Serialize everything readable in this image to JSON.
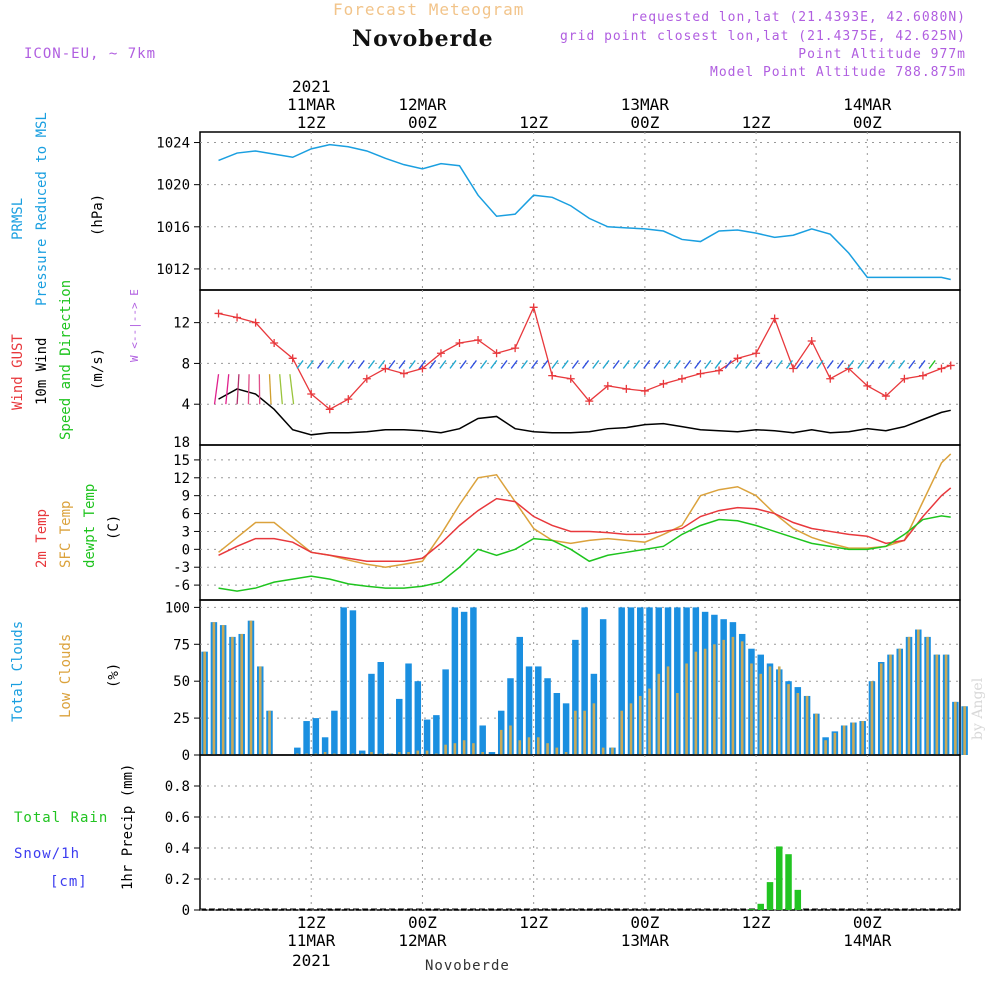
{
  "header": {
    "title": "Forecast Meteogram",
    "location": "Novoberde",
    "model": "ICON-EU, ~ 7km",
    "requested": "requested lon,lat (21.4393E, 42.6080N)",
    "gridpoint": "grid point closest lon,lat (21.4375E, 42.625N)",
    "altitude": "Point Altitude 977m",
    "model_altitude": "Model Point Altitude 788.875m",
    "credit": "by Angel",
    "footer": "Novoberde",
    "year": "2021"
  },
  "time_axis": {
    "top_labels": [
      {
        "t": 12,
        "line1": "11MAR",
        "line2": "12Z"
      },
      {
        "t": 24,
        "line1": "12MAR",
        "line2": "00Z"
      },
      {
        "t": 36,
        "line1": "",
        "line2": "12Z"
      },
      {
        "t": 48,
        "line1": "13MAR",
        "line2": "00Z"
      },
      {
        "t": 60,
        "line1": "",
        "line2": "12Z"
      },
      {
        "t": 72,
        "line1": "14MAR",
        "line2": "00Z"
      }
    ],
    "bottom_labels": [
      {
        "t": 12,
        "line1": "12Z",
        "line2": "11MAR"
      },
      {
        "t": 24,
        "line1": "00Z",
        "line2": "12MAR"
      },
      {
        "t": 36,
        "line1": "12Z",
        "line2": ""
      },
      {
        "t": 48,
        "line1": "00Z",
        "line2": "13MAR"
      },
      {
        "t": 60,
        "line1": "12Z",
        "line2": ""
      },
      {
        "t": 72,
        "line1": "00Z",
        "line2": "14MAR"
      }
    ]
  },
  "panel_labels": {
    "pressure": {
      "a": "PRMSL",
      "b": "Pressure Reduced to MSL",
      "unit": "(hPa)"
    },
    "wind": {
      "a": "Wind GUST",
      "b": "10m Wind",
      "c": "Speed and Direction",
      "unit": "(m/s)",
      "compass": "W <--|--> E"
    },
    "temp": {
      "a": "2m Temp",
      "b": "SFC Temp",
      "c": "dewpt Temp",
      "unit": "(C)"
    },
    "clouds": {
      "a": "Total Clouds",
      "b": "Low Clouds",
      "unit": "(%)"
    },
    "precip": {
      "a": "1hr Precip (mm)",
      "rain": "Total  Rain",
      "snow": "Snow/1h",
      "snow_unit": "[cm]"
    }
  },
  "colors": {
    "pressure": "#1a9fe0",
    "gust": "#e8383c",
    "wind": "#000000",
    "temp2m": "#e8383c",
    "sfc": "#dba23c",
    "dewpt": "#1ec41e",
    "total_clouds": "#1a8fe0",
    "low_clouds": "#c8aa5a",
    "rain": "#22c422",
    "title": "#f2c48a",
    "meta": "#b05ee0",
    "snow": "#3c3cf0"
  },
  "chart_data": [
    {
      "type": "line",
      "name_key": "pressure",
      "x_unit": "hours since 2021-03-11 00Z",
      "x": [
        2,
        4,
        6,
        8,
        10,
        12,
        14,
        16,
        18,
        20,
        22,
        24,
        26,
        28,
        30,
        32,
        34,
        36,
        38,
        40,
        42,
        44,
        46,
        48,
        50,
        52,
        54,
        56,
        58,
        60,
        62,
        64,
        66,
        68,
        70,
        72,
        74,
        76,
        78,
        80,
        81
      ],
      "y": [
        1022.3,
        1023.0,
        1023.2,
        1022.9,
        1022.6,
        1023.4,
        1023.8,
        1023.6,
        1023.2,
        1022.5,
        1021.9,
        1021.5,
        1022.0,
        1021.8,
        1019.0,
        1017.0,
        1017.2,
        1019.0,
        1018.8,
        1018.0,
        1016.8,
        1016.0,
        1015.9,
        1015.8,
        1015.6,
        1014.8,
        1014.6,
        1015.6,
        1015.7,
        1015.4,
        1015.0,
        1015.2,
        1015.8,
        1015.3,
        1013.5,
        1011.2,
        1011.2,
        1011.2,
        1011.2,
        1011.2,
        1011.0
      ],
      "ylim": [
        1010,
        1025
      ],
      "yticks": [
        1012,
        1016,
        1020,
        1024
      ]
    },
    {
      "type": "line",
      "name_key": "wind",
      "x": [
        2,
        4,
        6,
        8,
        10,
        12,
        14,
        16,
        18,
        20,
        22,
        24,
        26,
        28,
        30,
        32,
        34,
        36,
        38,
        40,
        42,
        44,
        46,
        48,
        50,
        52,
        54,
        56,
        58,
        60,
        62,
        64,
        66,
        68,
        70,
        72,
        74,
        76,
        78,
        80,
        81
      ],
      "gust": [
        12.9,
        12.5,
        12.0,
        10.0,
        8.5,
        5.0,
        3.5,
        4.5,
        6.5,
        7.5,
        7.0,
        7.5,
        9.0,
        10.0,
        10.3,
        9.0,
        9.5,
        13.5,
        6.8,
        6.5,
        4.3,
        5.8,
        5.5,
        5.3,
        6.0,
        6.5,
        7.0,
        7.3,
        8.5,
        9.0,
        12.4,
        7.5,
        10.2,
        6.5,
        7.5,
        5.8,
        4.8,
        6.5,
        6.8,
        7.5,
        7.8
      ],
      "wind10m": [
        4.5,
        5.5,
        5.0,
        3.5,
        1.5,
        1.0,
        1.2,
        1.2,
        1.3,
        1.5,
        1.5,
        1.4,
        1.2,
        1.6,
        2.6,
        2.8,
        1.6,
        1.3,
        1.2,
        1.2,
        1.3,
        1.6,
        1.7,
        2.0,
        2.1,
        1.8,
        1.5,
        1.4,
        1.3,
        1.5,
        1.4,
        1.2,
        1.5,
        1.2,
        1.3,
        1.6,
        1.4,
        1.8,
        2.5,
        3.2,
        3.4
      ],
      "ylim": [
        0,
        15.2
      ],
      "yticks": [
        4,
        8,
        12
      ]
    },
    {
      "type": "line",
      "name_key": "temp",
      "x": [
        2,
        4,
        6,
        8,
        10,
        12,
        14,
        16,
        18,
        20,
        22,
        24,
        26,
        28,
        30,
        32,
        34,
        36,
        38,
        40,
        42,
        44,
        46,
        48,
        50,
        52,
        54,
        56,
        58,
        60,
        62,
        64,
        66,
        68,
        70,
        72,
        74,
        76,
        78,
        80,
        81
      ],
      "temp2m": [
        -1.0,
        0.5,
        1.8,
        1.8,
        1.2,
        -0.5,
        -1.0,
        -1.5,
        -2.0,
        -2.0,
        -2.0,
        -1.5,
        1.0,
        4.0,
        6.5,
        8.5,
        8.0,
        5.5,
        4.0,
        3.0,
        3.0,
        2.8,
        2.5,
        2.5,
        3.0,
        3.5,
        5.5,
        6.5,
        7.0,
        6.8,
        6.0,
        4.5,
        3.5,
        3.0,
        2.5,
        2.2,
        1.0,
        1.5,
        5.5,
        9.0,
        10.3
      ],
      "sfc": [
        -0.5,
        2.0,
        4.5,
        4.5,
        2.0,
        -0.5,
        -1.0,
        -1.8,
        -2.5,
        -3.0,
        -2.5,
        -2.0,
        2.5,
        7.5,
        12.0,
        12.5,
        8.0,
        3.5,
        1.5,
        1.0,
        1.5,
        1.8,
        1.5,
        1.2,
        2.5,
        4.0,
        9.0,
        10.0,
        10.5,
        9.0,
        6.0,
        3.5,
        2.0,
        1.0,
        0.2,
        0.2,
        0.5,
        1.5,
        8.0,
        14.5,
        16.0
      ],
      "dewpt": [
        -6.5,
        -7.0,
        -6.5,
        -5.5,
        -5.0,
        -4.5,
        -5.0,
        -5.8,
        -6.2,
        -6.5,
        -6.5,
        -6.2,
        -5.5,
        -3.0,
        0.0,
        -1.0,
        0.0,
        1.8,
        1.5,
        0.0,
        -2.0,
        -1.0,
        -0.5,
        0.0,
        0.5,
        2.5,
        4.0,
        5.0,
        4.8,
        4.0,
        3.0,
        2.0,
        1.0,
        0.5,
        0.0,
        0.0,
        0.5,
        2.5,
        5.0,
        5.6,
        5.4
      ],
      "ylim": [
        -8.5,
        17.5
      ],
      "yticks": [
        -6,
        -3,
        0,
        3,
        6,
        9,
        12,
        15,
        18
      ]
    },
    {
      "type": "bar",
      "name_key": "clouds",
      "x_start": 0,
      "x_step": 1,
      "total": [
        70,
        90,
        88,
        80,
        82,
        91,
        60,
        30,
        0,
        0,
        5,
        23,
        25,
        12,
        30,
        100,
        98,
        3,
        55,
        63,
        1,
        38,
        62,
        50,
        24,
        27,
        58,
        100,
        97,
        100,
        20,
        2,
        30,
        52,
        80,
        60,
        60,
        52,
        42,
        35,
        78,
        100,
        55,
        92,
        5,
        100,
        100,
        100,
        100,
        100,
        100,
        100,
        100,
        100,
        97,
        95,
        92,
        90,
        82,
        72,
        68,
        62,
        58,
        50,
        46,
        40,
        28,
        12,
        16,
        20,
        22,
        23,
        50,
        63,
        68,
        72,
        80,
        85,
        80,
        68,
        68,
        36,
        33
      ],
      "low": [
        70,
        90,
        88,
        80,
        82,
        91,
        60,
        30,
        0,
        0,
        1,
        1,
        1,
        2,
        1,
        0,
        1,
        1,
        2,
        1,
        1,
        2,
        2,
        3,
        3,
        1,
        7,
        8,
        10,
        8,
        2,
        0,
        17,
        20,
        10,
        12,
        12,
        8,
        5,
        2,
        30,
        30,
        35,
        5,
        5,
        30,
        35,
        40,
        45,
        55,
        60,
        42,
        62,
        70,
        72,
        75,
        78,
        80,
        77,
        62,
        55,
        60,
        60,
        48,
        42,
        40,
        28,
        10,
        15,
        20,
        22,
        23,
        50,
        62,
        68,
        72,
        80,
        85,
        80,
        68,
        68,
        36,
        33
      ],
      "ylim": [
        0,
        105
      ],
      "yticks": [
        0,
        25,
        50,
        75,
        100
      ]
    },
    {
      "type": "bar",
      "name_key": "precip",
      "x_start": 0,
      "x_step": 1,
      "rain": [
        0,
        0,
        0,
        0,
        0,
        0,
        0,
        0,
        0,
        0,
        0,
        0,
        0,
        0,
        0,
        0,
        0,
        0,
        0,
        0,
        0,
        0,
        0,
        0,
        0,
        0,
        0,
        0,
        0,
        0,
        0,
        0,
        0,
        0,
        0,
        0,
        0,
        0,
        0,
        0,
        0,
        0,
        0,
        0,
        0,
        0,
        0,
        0,
        0,
        0,
        0,
        0,
        0,
        0,
        0,
        0,
        0,
        0,
        0,
        0.005,
        0.04,
        0.18,
        0.41,
        0.36,
        0.13,
        0,
        0,
        0,
        0,
        0,
        0,
        0,
        0,
        0,
        0,
        0,
        0,
        0,
        0,
        0,
        0,
        0,
        0
      ],
      "ylim": [
        0,
        1.0
      ],
      "yticks": [
        0,
        0.2,
        0.4,
        0.6,
        0.8
      ]
    }
  ]
}
